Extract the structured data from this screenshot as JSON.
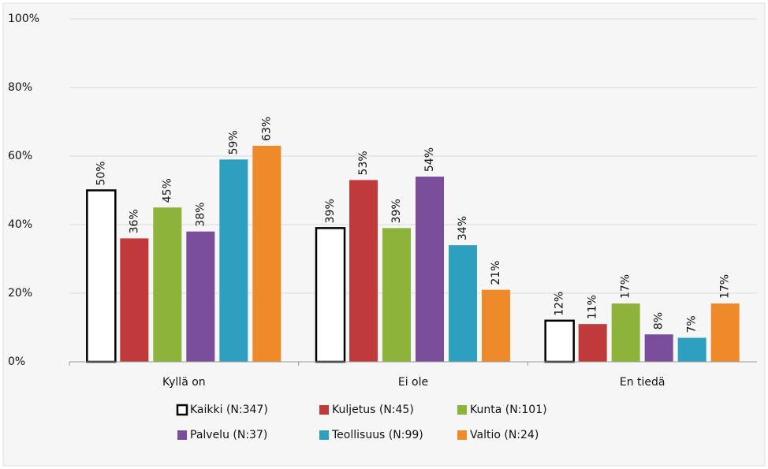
{
  "chart_data": {
    "type": "bar",
    "categories": [
      "Kyllä on",
      "Ei ole",
      "En tiedä"
    ],
    "series": [
      {
        "name": "Kaikki (N:347)",
        "color": "#ffffff",
        "edgecolor": "#000000",
        "values": [
          50,
          39,
          12
        ],
        "value_labels": [
          "50%",
          "39%",
          "12%"
        ]
      },
      {
        "name": "Kuljetus (N:45)",
        "color": "#c0393b",
        "values": [
          36,
          53,
          11
        ],
        "value_labels": [
          "36%",
          "53%",
          "11%"
        ]
      },
      {
        "name": "Kunta (N:101)",
        "color": "#8db33a",
        "values": [
          45,
          39,
          17
        ],
        "value_labels": [
          "45%",
          "39%",
          "17%"
        ]
      },
      {
        "name": "Palvelu (N:37)",
        "color": "#7a4e9a",
        "values": [
          38,
          54,
          8
        ],
        "value_labels": [
          "38%",
          "54%",
          "8%"
        ]
      },
      {
        "name": "Teollisuus (N:99)",
        "color": "#2e9fbf",
        "values": [
          59,
          34,
          7
        ],
        "value_labels": [
          "59%",
          "34%",
          "7%"
        ]
      },
      {
        "name": "Valtio (N:24)",
        "color": "#ee8a2a",
        "values": [
          63,
          21,
          17
        ],
        "value_labels": [
          "63%",
          "21%",
          "17%"
        ]
      }
    ],
    "ylim": [
      0,
      100
    ],
    "yticks": [
      {
        "value": 0,
        "label": "0%"
      },
      {
        "value": 20,
        "label": "20%"
      },
      {
        "value": 40,
        "label": "40%"
      },
      {
        "value": 60,
        "label": "60%"
      },
      {
        "value": 80,
        "label": "80%"
      },
      {
        "value": 100,
        "label": "100%"
      }
    ],
    "grid": true,
    "legend": "bottom"
  }
}
